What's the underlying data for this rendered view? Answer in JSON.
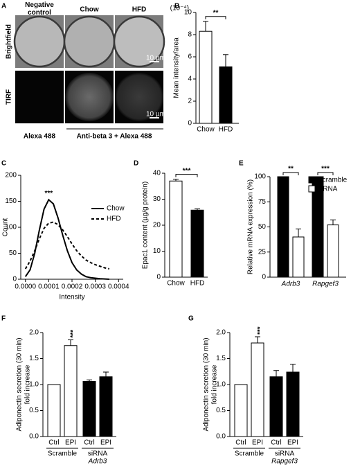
{
  "panel_a": {
    "panel": "A",
    "columns": [
      "Negative control",
      "Chow",
      "HFD"
    ],
    "rows": [
      "Brightfield",
      "TIRF"
    ],
    "scale_bar": "10 µm",
    "bottom_labels": [
      "Alexa 488",
      "Anti-beta 3 + Alexa 488"
    ]
  },
  "chart_data": [
    {
      "type": "bar",
      "panel": "B",
      "categories": [
        "Chow",
        "HFD"
      ],
      "values": [
        8.3,
        5.1
      ],
      "errors": [
        0.9,
        1.1
      ],
      "colors": [
        "#ffffff",
        "#000000"
      ],
      "ylim": [
        0,
        10
      ],
      "yticks": [
        0,
        2,
        4,
        6,
        8,
        10
      ],
      "ylabel": [
        "Mean intensity/area"
      ],
      "yunit": "(10⁻⁴)",
      "annotation": "**"
    },
    {
      "type": "line",
      "panel": "C",
      "x": [
        0,
        2e-05,
        4e-05,
        6e-05,
        8e-05,
        0.0001,
        0.00012,
        0.00014,
        0.00016,
        0.00018,
        0.0002,
        0.00022,
        0.00024,
        0.00026,
        0.00028,
        0.0003,
        0.00032,
        0.00034,
        0.00036
      ],
      "series": [
        {
          "name": "Chow",
          "color": "#000000",
          "dash": false,
          "values": [
            5,
            18,
            50,
            95,
            135,
            153,
            145,
            118,
            85,
            55,
            32,
            18,
            10,
            5,
            3,
            2,
            1,
            0.5,
            0
          ]
        },
        {
          "name": "HFD",
          "color": "#000000",
          "dash": true,
          "values": [
            20,
            35,
            55,
            78,
            98,
            108,
            110,
            105,
            95,
            82,
            68,
            55,
            45,
            37,
            32,
            28,
            25,
            22,
            20
          ]
        }
      ],
      "xlim": [
        -2e-05,
        0.00042
      ],
      "xticks": [
        {
          "value": 0,
          "label": "0.0000"
        },
        {
          "value": 0.0001,
          "label": "0.0001"
        },
        {
          "value": 0.0002,
          "label": "0.0002"
        },
        {
          "value": 0.0003,
          "label": "0.0003"
        },
        {
          "value": 0.0004,
          "label": "0.0004"
        }
      ],
      "ylim": [
        0,
        200
      ],
      "yticks": [
        0,
        50,
        100,
        150,
        200
      ],
      "xlabel": "Intensity",
      "ylabel": [
        "Count"
      ],
      "annotation": "***"
    },
    {
      "type": "bar",
      "panel": "D",
      "categories": [
        "Chow",
        "HFD"
      ],
      "values": [
        37,
        25.8
      ],
      "errors": [
        0.7,
        0.5
      ],
      "colors": [
        "#ffffff",
        "#000000"
      ],
      "ylim": [
        0,
        40
      ],
      "yticks": [
        0,
        10,
        20,
        30,
        40
      ],
      "ylabel": [
        "Epac1 content (µg/g protein)"
      ],
      "annotation": "***"
    },
    {
      "type": "grouped_bar",
      "panel": "E",
      "categories": [
        "Adrb3",
        "Rapgef3"
      ],
      "series": [
        {
          "name": "Scramble",
          "color": "#000000",
          "values": [
            100,
            100
          ],
          "errors": [
            0,
            0
          ]
        },
        {
          "name": "siRNA",
          "color": "#ffffff",
          "values": [
            40,
            52
          ],
          "errors": [
            8,
            5
          ]
        }
      ],
      "ylim": [
        0,
        100
      ],
      "yticks": [
        0,
        25,
        50,
        75,
        100
      ],
      "ylabel": [
        "Relative mRNA expression (%)"
      ],
      "annotations": [
        "**",
        "***"
      ]
    },
    {
      "type": "bar",
      "panel": "F",
      "categories": [
        "Ctrl",
        "EPI",
        "Ctrl",
        "EPI"
      ],
      "values": [
        1.0,
        1.75,
        1.06,
        1.15
      ],
      "errors": [
        0,
        0.11,
        0.03,
        0.09
      ],
      "colors": [
        "#ffffff",
        "#ffffff",
        "#000000",
        "#000000"
      ],
      "groups": [
        {
          "name": "Scramble"
        },
        {
          "name": "siRNA",
          "gene": "Adrb3"
        }
      ],
      "ylim": [
        0,
        2
      ],
      "yticks": [
        {
          "value": 0,
          "label": "0.0"
        },
        0.5,
        {
          "value": 1,
          "label": "1.0"
        },
        1.5,
        {
          "value": 2,
          "label": "2.0"
        }
      ],
      "ylabel": [
        "Adiponectin secretion (30 min)",
        "fold increase"
      ],
      "annotation": "***"
    },
    {
      "type": "bar",
      "panel": "G",
      "categories": [
        "Ctrl",
        "EPI",
        "Ctrl",
        "EPI"
      ],
      "values": [
        1.0,
        1.8,
        1.15,
        1.24
      ],
      "errors": [
        0,
        0.12,
        0.12,
        0.15
      ],
      "colors": [
        "#ffffff",
        "#ffffff",
        "#000000",
        "#000000"
      ],
      "groups": [
        {
          "name": "Scramble"
        },
        {
          "name": "siRNA",
          "gene": "Rapgef3"
        }
      ],
      "ylim": [
        0,
        2
      ],
      "yticks": [
        {
          "value": 0,
          "label": "0.0"
        },
        0.5,
        {
          "value": 1,
          "label": "1.0"
        },
        1.5,
        {
          "value": 2,
          "label": "2.0"
        }
      ],
      "ylabel": [
        "Adiponectin secretion (30 min)",
        "fold increase"
      ],
      "annotation": "***"
    }
  ]
}
